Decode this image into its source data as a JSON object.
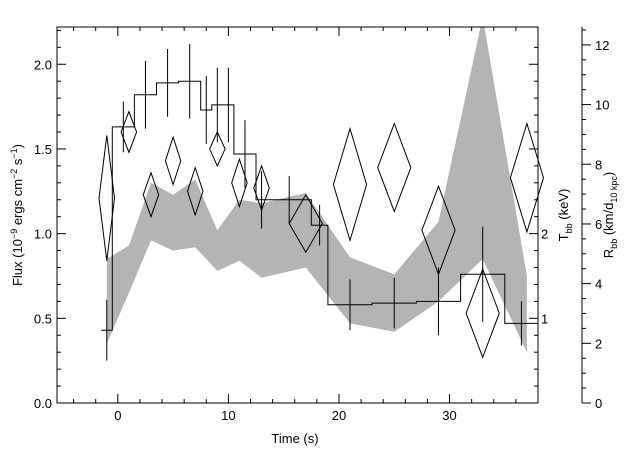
{
  "chart_data": {
    "type": "line",
    "xlabel": "Time (s)",
    "ylabel": {
      "main": "Flux (10",
      "sup1": "−9",
      "mid1": " ergs cm",
      "sup2": "−2",
      "mid2": " s",
      "sup3": "−1",
      "end": ")"
    },
    "y2label": {
      "main": "T",
      "sub": "bb",
      "end": " (keV)"
    },
    "y3label": {
      "main": "R",
      "sub": "bb",
      "mid": " (km/d",
      "sub2": "10 kpc",
      "end": ")"
    },
    "xlim": [
      -5.5,
      38
    ],
    "ylim": [
      0,
      2.22
    ],
    "y2_ticks": [
      1,
      2
    ],
    "y3lim": [
      0,
      12.6
    ],
    "x_ticks": [
      0,
      10,
      20,
      30
    ],
    "y_ticks": [
      0.0,
      0.5,
      1.0,
      1.5,
      2.0
    ],
    "y3_ticks": [
      0,
      2,
      4,
      6,
      8,
      10,
      12
    ],
    "grid": false,
    "series": [
      {
        "style": "histogram-step",
        "bins": [
          {
            "x0": -1.5,
            "x1": -0.5,
            "flux": 0.43,
            "err": 0.18
          },
          {
            "x0": -0.5,
            "x1": 1.5,
            "flux": 1.63,
            "err": 0.15
          },
          {
            "x0": 1.5,
            "x1": 3.5,
            "flux": 1.82,
            "err": 0.2
          },
          {
            "x0": 3.5,
            "x1": 5.5,
            "flux": 1.89,
            "err": 0.2
          },
          {
            "x0": 5.5,
            "x1": 7.5,
            "flux": 1.9,
            "err": 0.22
          },
          {
            "x0": 7.5,
            "x1": 8.5,
            "flux": 1.73,
            "err": 0.2
          },
          {
            "x0": 8.5,
            "x1": 9.5,
            "flux": 1.76,
            "err": 0.22
          },
          {
            "x0": 9.5,
            "x1": 10.5,
            "flux": 1.76,
            "err": 0.22
          },
          {
            "x0": 10.5,
            "x1": 12.5,
            "flux": 1.47,
            "err": 0.2
          },
          {
            "x0": 12.5,
            "x1": 13.5,
            "flux": 1.2,
            "err": 0.17
          },
          {
            "x0": 13.5,
            "x1": 17.5,
            "flux": 1.2,
            "err": 0.14
          },
          {
            "x0": 17.5,
            "x1": 19.0,
            "flux": 1.05,
            "err": 0.12
          },
          {
            "x0": 19.0,
            "x1": 23.0,
            "flux": 0.58,
            "err": 0.15
          },
          {
            "x0": 23.0,
            "x1": 27.0,
            "flux": 0.59,
            "err": 0.15
          },
          {
            "x0": 27.0,
            "x1": 31.0,
            "flux": 0.6,
            "err": 0.2
          },
          {
            "x0": 31.0,
            "x1": 35.0,
            "flux": 0.76,
            "err": 0.28
          },
          {
            "x0": 35.0,
            "x1": 38.0,
            "flux": 0.47,
            "err": 0.13
          }
        ]
      },
      {
        "style": "diamond",
        "points": [
          {
            "x": -1,
            "y": 1.21,
            "dx": 0.7,
            "dy": 0.37
          },
          {
            "x": 1,
            "y": 1.6,
            "dx": 0.7,
            "dy": 0.12
          },
          {
            "x": 3,
            "y": 1.23,
            "dx": 0.7,
            "dy": 0.13
          },
          {
            "x": 5,
            "y": 1.43,
            "dx": 0.7,
            "dy": 0.14
          },
          {
            "x": 7,
            "y": 1.25,
            "dx": 0.7,
            "dy": 0.14
          },
          {
            "x": 9,
            "y": 1.5,
            "dx": 0.7,
            "dy": 0.1
          },
          {
            "x": 11,
            "y": 1.3,
            "dx": 0.7,
            "dy": 0.14
          },
          {
            "x": 13,
            "y": 1.27,
            "dx": 0.7,
            "dy": 0.13
          },
          {
            "x": 17,
            "y": 1.06,
            "dx": 1.5,
            "dy": 0.17
          },
          {
            "x": 21,
            "y": 1.29,
            "dx": 1.5,
            "dy": 0.33
          },
          {
            "x": 25,
            "y": 1.39,
            "dx": 1.5,
            "dy": 0.26
          },
          {
            "x": 29,
            "y": 1.02,
            "dx": 1.5,
            "dy": 0.26
          },
          {
            "x": 33,
            "y": 0.53,
            "dx": 1.5,
            "dy": 0.26
          },
          {
            "x": 37,
            "y": 1.33,
            "dx": 1.5,
            "dy": 0.32
          }
        ]
      },
      {
        "style": "shaded-band",
        "points": [
          {
            "x": -1,
            "lo": 0.35,
            "hi": 0.85
          },
          {
            "x": 1,
            "lo": 0.65,
            "hi": 0.93
          },
          {
            "x": 3,
            "lo": 0.96,
            "hi": 1.3
          },
          {
            "x": 5,
            "lo": 0.9,
            "hi": 1.23
          },
          {
            "x": 7,
            "lo": 0.92,
            "hi": 1.32
          },
          {
            "x": 9,
            "lo": 0.78,
            "hi": 1.02
          },
          {
            "x": 11,
            "lo": 0.84,
            "hi": 1.2
          },
          {
            "x": 13,
            "lo": 0.74,
            "hi": 1.18
          },
          {
            "x": 17,
            "lo": 0.8,
            "hi": 1.24
          },
          {
            "x": 21,
            "lo": 0.47,
            "hi": 0.86
          },
          {
            "x": 25,
            "lo": 0.42,
            "hi": 0.76
          },
          {
            "x": 29,
            "lo": 0.6,
            "hi": 1.07
          },
          {
            "x": 33,
            "lo": 0.85,
            "hi": 2.28
          },
          {
            "x": 37,
            "lo": 0.3,
            "hi": 0.75
          }
        ]
      }
    ]
  }
}
